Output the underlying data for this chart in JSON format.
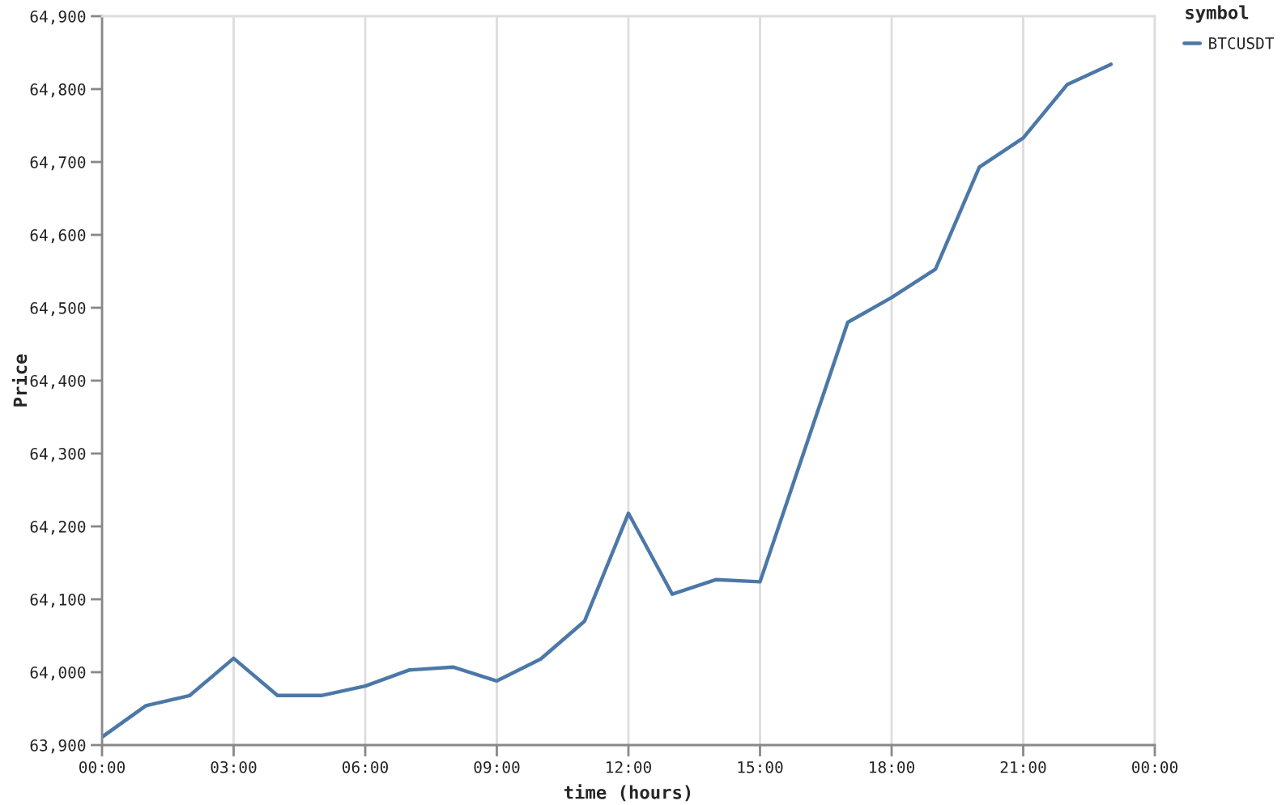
{
  "chart_data": {
    "type": "line",
    "xlabel": "time (hours)",
    "ylabel": "Price",
    "legend_title": "symbol",
    "x": [
      0,
      1,
      2,
      3,
      4,
      5,
      6,
      7,
      8,
      9,
      10,
      11,
      12,
      13,
      14,
      15,
      16,
      17,
      18,
      19,
      20,
      21,
      22,
      23
    ],
    "series": [
      {
        "name": "BTCUSDT",
        "color": "#4c78a8",
        "values": [
          63911,
          63954,
          63968,
          64019,
          63968,
          63968,
          63981,
          64003,
          64007,
          63988,
          64018,
          64070,
          64218,
          64107,
          64127,
          64124,
          64302,
          64480,
          64514,
          64553,
          64693,
          64733,
          64806,
          64834
        ]
      }
    ],
    "xlim": [
      0,
      24
    ],
    "xticks": [
      {
        "value": 0,
        "label": "00:00"
      },
      {
        "value": 3,
        "label": "03:00"
      },
      {
        "value": 6,
        "label": "06:00"
      },
      {
        "value": 9,
        "label": "09:00"
      },
      {
        "value": 12,
        "label": "12:00"
      },
      {
        "value": 15,
        "label": "15:00"
      },
      {
        "value": 18,
        "label": "18:00"
      },
      {
        "value": 21,
        "label": "21:00"
      },
      {
        "value": 24,
        "label": "00:00"
      }
    ],
    "ylim": [
      63900,
      64900
    ],
    "yticks": [
      {
        "value": 63900,
        "label": "63,900"
      },
      {
        "value": 64000,
        "label": "64,000"
      },
      {
        "value": 64100,
        "label": "64,100"
      },
      {
        "value": 64200,
        "label": "64,200"
      },
      {
        "value": 64300,
        "label": "64,300"
      },
      {
        "value": 64400,
        "label": "64,400"
      },
      {
        "value": 64500,
        "label": "64,500"
      },
      {
        "value": 64600,
        "label": "64,600"
      },
      {
        "value": 64700,
        "label": "64,700"
      },
      {
        "value": 64800,
        "label": "64,800"
      },
      {
        "value": 64900,
        "label": "64,900"
      }
    ],
    "grid": "x",
    "legend": "top right",
    "marker": "none",
    "line_style": "solid"
  }
}
